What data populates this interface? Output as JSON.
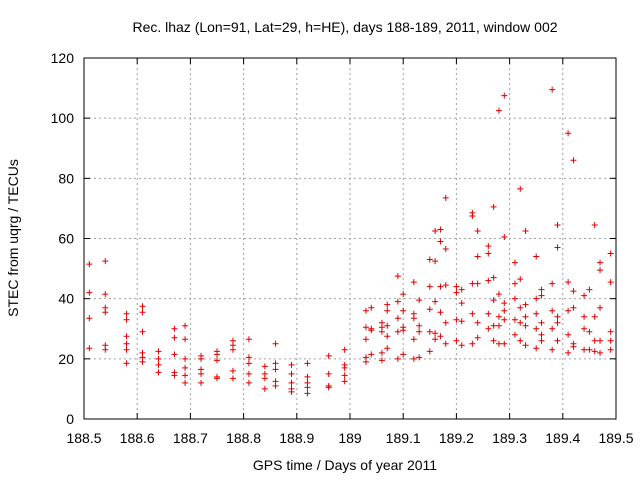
{
  "chart_data": {
    "type": "scatter",
    "title": "Rec. lhaz (Lon=91, Lat=29, h=HE), days 188-189, 2011, window 002",
    "xlabel": "GPS time / Days of year 2011",
    "ylabel": "STEC from uqrg / TECUs",
    "xlim": [
      188.5,
      189.5
    ],
    "ylim": [
      0,
      120
    ],
    "x_ticks": [
      188.5,
      188.6,
      188.7,
      188.8,
      188.9,
      189,
      189.1,
      189.2,
      189.3,
      189.4,
      189.5
    ],
    "x_tick_labels": [
      "188.5",
      "188.6",
      "188.7",
      "188.8",
      "188.9",
      "189",
      "189.1",
      "189.2",
      "189.3",
      "189.4",
      "189.5"
    ],
    "y_ticks": [
      0,
      20,
      40,
      60,
      80,
      100,
      120
    ],
    "y_tick_labels": [
      "0",
      "20",
      "40",
      "60",
      "80",
      "100",
      "120"
    ],
    "grid": true,
    "marker": "plus",
    "series": [
      {
        "name": "STEC",
        "color": "#dd0000",
        "points": [
          [
            188.51,
            51.5
          ],
          [
            188.51,
            42
          ],
          [
            188.51,
            33.5
          ],
          [
            188.51,
            23.5
          ],
          [
            188.54,
            52.5
          ],
          [
            188.54,
            41.5
          ],
          [
            188.54,
            37
          ],
          [
            188.54,
            35.5
          ],
          [
            188.54,
            24.5
          ],
          [
            188.54,
            23
          ],
          [
            188.58,
            35
          ],
          [
            188.58,
            33
          ],
          [
            188.58,
            27.5
          ],
          [
            188.58,
            25
          ],
          [
            188.58,
            23
          ],
          [
            188.58,
            18.5
          ],
          [
            188.61,
            37.5
          ],
          [
            188.61,
            35.5
          ],
          [
            188.61,
            29
          ],
          [
            188.61,
            22
          ],
          [
            188.61,
            20.5
          ],
          [
            188.61,
            19
          ],
          [
            188.64,
            22.5
          ],
          [
            188.64,
            20
          ],
          [
            188.64,
            18
          ],
          [
            188.64,
            15.5
          ],
          [
            188.67,
            30
          ],
          [
            188.67,
            27
          ],
          [
            188.67,
            21.5
          ],
          [
            188.67,
            15.5
          ],
          [
            188.67,
            14.5
          ],
          [
            188.69,
            31
          ],
          [
            188.69,
            26.5
          ],
          [
            188.69,
            20
          ],
          [
            188.69,
            17
          ],
          [
            188.69,
            14.5
          ],
          [
            188.69,
            12
          ],
          [
            188.72,
            21
          ],
          [
            188.72,
            20
          ],
          [
            188.72,
            16.5
          ],
          [
            188.72,
            15
          ],
          [
            188.72,
            12
          ],
          [
            188.75,
            22.5
          ],
          [
            188.75,
            21.5
          ],
          [
            188.75,
            19.5
          ],
          [
            188.75,
            14
          ],
          [
            188.75,
            13.5
          ],
          [
            188.78,
            26
          ],
          [
            188.78,
            24.5
          ],
          [
            188.78,
            23
          ],
          [
            188.78,
            16
          ],
          [
            188.78,
            13.5
          ],
          [
            188.81,
            26.5
          ],
          [
            188.81,
            20.5
          ],
          [
            188.81,
            18.5
          ],
          [
            188.81,
            15
          ],
          [
            188.81,
            12
          ],
          [
            188.84,
            17.5
          ],
          [
            188.84,
            15
          ],
          [
            188.84,
            13.5
          ],
          [
            188.84,
            10
          ],
          [
            188.86,
            25
          ],
          [
            188.86,
            18.5
          ],
          [
            188.86,
            16.5
          ],
          [
            188.86,
            12.5
          ],
          [
            188.86,
            11
          ],
          [
            188.89,
            18
          ],
          [
            188.89,
            15
          ],
          [
            188.89,
            12
          ],
          [
            188.89,
            10
          ],
          [
            188.89,
            9
          ],
          [
            188.92,
            18.5
          ],
          [
            188.92,
            14
          ],
          [
            188.92,
            12
          ],
          [
            188.92,
            10.5
          ],
          [
            188.92,
            8.5
          ],
          [
            188.96,
            21
          ],
          [
            188.96,
            15
          ],
          [
            188.96,
            11
          ],
          [
            188.96,
            10.5
          ],
          [
            188.99,
            23
          ],
          [
            188.99,
            18
          ],
          [
            188.99,
            17
          ],
          [
            188.99,
            14.5
          ],
          [
            188.99,
            12.5
          ],
          [
            189.03,
            36
          ],
          [
            189.03,
            30.5
          ],
          [
            189.03,
            26.5
          ],
          [
            189.03,
            20.5
          ],
          [
            189.03,
            19
          ],
          [
            189.04,
            37
          ],
          [
            189.04,
            30
          ],
          [
            189.04,
            29.5
          ],
          [
            189.04,
            21.5
          ],
          [
            189.06,
            32
          ],
          [
            189.06,
            30.5
          ],
          [
            189.06,
            29
          ],
          [
            189.06,
            22
          ],
          [
            189.06,
            19.5
          ],
          [
            189.07,
            38
          ],
          [
            189.07,
            36
          ],
          [
            189.07,
            31
          ],
          [
            189.07,
            27.5
          ],
          [
            189.07,
            23.5
          ],
          [
            189.09,
            47.5
          ],
          [
            189.09,
            39
          ],
          [
            189.09,
            33.5
          ],
          [
            189.09,
            29
          ],
          [
            189.09,
            20
          ],
          [
            189.1,
            41.5
          ],
          [
            189.1,
            36
          ],
          [
            189.1,
            30.5
          ],
          [
            189.1,
            29.5
          ],
          [
            189.1,
            21.5
          ],
          [
            189.12,
            45.5
          ],
          [
            189.12,
            35
          ],
          [
            189.12,
            33.5
          ],
          [
            189.12,
            26.5
          ],
          [
            189.12,
            20
          ],
          [
            189.13,
            39.5
          ],
          [
            189.13,
            31
          ],
          [
            189.13,
            29
          ],
          [
            189.13,
            20.5
          ],
          [
            189.15,
            53
          ],
          [
            189.15,
            44
          ],
          [
            189.15,
            36.5
          ],
          [
            189.15,
            29
          ],
          [
            189.15,
            22.5
          ],
          [
            189.16,
            62.5
          ],
          [
            189.16,
            52.5
          ],
          [
            189.16,
            39
          ],
          [
            189.16,
            28.5
          ],
          [
            189.16,
            26.5
          ],
          [
            189.17,
            63
          ],
          [
            189.17,
            59
          ],
          [
            189.17,
            44
          ],
          [
            189.17,
            35.5
          ],
          [
            189.17,
            27.5
          ],
          [
            189.18,
            73.5
          ],
          [
            189.18,
            56.5
          ],
          [
            189.18,
            44.5
          ],
          [
            189.18,
            32
          ],
          [
            189.18,
            25
          ],
          [
            189.2,
            44
          ],
          [
            189.2,
            42
          ],
          [
            189.2,
            33
          ],
          [
            189.2,
            26
          ],
          [
            189.21,
            43
          ],
          [
            189.21,
            38.5
          ],
          [
            189.21,
            32.5
          ],
          [
            189.21,
            24.5
          ],
          [
            189.23,
            68.5
          ],
          [
            189.23,
            67.5
          ],
          [
            189.23,
            45
          ],
          [
            189.23,
            35
          ],
          [
            189.23,
            25
          ],
          [
            189.24,
            62.5
          ],
          [
            189.24,
            54
          ],
          [
            189.24,
            45
          ],
          [
            189.24,
            32
          ],
          [
            189.24,
            27
          ],
          [
            189.26,
            57.5
          ],
          [
            189.26,
            55
          ],
          [
            189.26,
            46
          ],
          [
            189.26,
            35
          ],
          [
            189.26,
            30
          ],
          [
            189.27,
            70.5
          ],
          [
            189.27,
            47
          ],
          [
            189.27,
            39.5
          ],
          [
            189.27,
            31
          ],
          [
            189.27,
            26
          ],
          [
            189.28,
            102.5
          ],
          [
            189.28,
            41.5
          ],
          [
            189.28,
            34
          ],
          [
            189.28,
            31
          ],
          [
            189.28,
            25
          ],
          [
            189.29,
            107.5
          ],
          [
            189.29,
            60.5
          ],
          [
            189.29,
            38.5
          ],
          [
            189.29,
            36
          ],
          [
            189.29,
            33
          ],
          [
            189.29,
            25
          ],
          [
            189.31,
            52
          ],
          [
            189.31,
            45
          ],
          [
            189.31,
            40
          ],
          [
            189.31,
            33
          ],
          [
            189.31,
            28
          ],
          [
            189.32,
            76.5
          ],
          [
            189.32,
            46.5
          ],
          [
            189.32,
            37
          ],
          [
            189.32,
            32
          ],
          [
            189.32,
            26
          ],
          [
            189.33,
            62.5
          ],
          [
            189.33,
            38
          ],
          [
            189.33,
            34
          ],
          [
            189.33,
            31
          ],
          [
            189.33,
            24.5
          ],
          [
            189.35,
            54
          ],
          [
            189.35,
            40
          ],
          [
            189.35,
            35
          ],
          [
            189.35,
            30
          ],
          [
            189.35,
            23.5
          ],
          [
            189.36,
            43
          ],
          [
            189.36,
            41
          ],
          [
            189.36,
            32
          ],
          [
            189.36,
            28
          ],
          [
            189.36,
            26
          ],
          [
            189.38,
            109.5
          ],
          [
            189.38,
            45
          ],
          [
            189.38,
            36
          ],
          [
            189.38,
            30
          ],
          [
            189.38,
            23
          ],
          [
            189.39,
            64.5
          ],
          [
            189.39,
            57
          ],
          [
            189.39,
            34
          ],
          [
            189.39,
            32
          ],
          [
            189.39,
            26
          ],
          [
            189.41,
            95
          ],
          [
            189.41,
            45.5
          ],
          [
            189.41,
            36
          ],
          [
            189.41,
            28
          ],
          [
            189.41,
            22
          ],
          [
            189.42,
            86
          ],
          [
            189.42,
            42.5
          ],
          [
            189.42,
            37
          ],
          [
            189.42,
            25
          ],
          [
            189.42,
            24
          ],
          [
            189.44,
            41
          ],
          [
            189.44,
            34
          ],
          [
            189.44,
            30
          ],
          [
            189.44,
            23
          ],
          [
            189.45,
            43
          ],
          [
            189.45,
            29
          ],
          [
            189.45,
            23
          ],
          [
            189.46,
            64.5
          ],
          [
            189.46,
            34
          ],
          [
            189.46,
            26
          ],
          [
            189.46,
            22.5
          ],
          [
            189.47,
            52
          ],
          [
            189.47,
            49.5
          ],
          [
            189.47,
            37
          ],
          [
            189.47,
            26
          ],
          [
            189.47,
            22
          ],
          [
            189.49,
            55
          ],
          [
            189.49,
            45.5
          ],
          [
            189.49,
            29
          ],
          [
            189.49,
            26
          ],
          [
            189.49,
            23
          ]
        ]
      }
    ]
  }
}
